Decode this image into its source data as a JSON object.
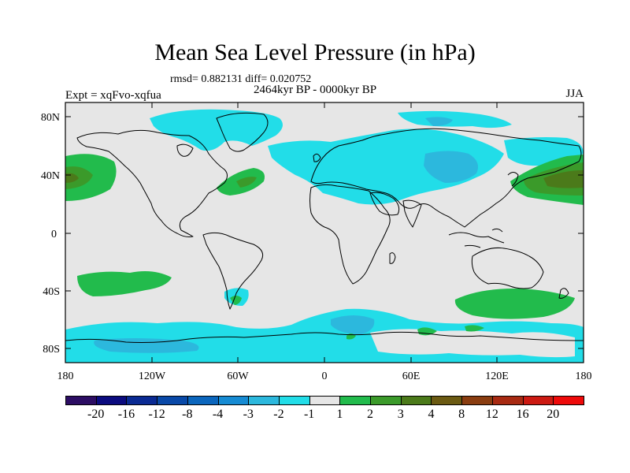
{
  "title": "Mean Sea Level Pressure (in hPa)",
  "stats": "rmsd= 0.882131 diff= 0.020752",
  "period": "2464kyr BP - 0000kyr BP",
  "experiment": "Expt = xqFvo-xqfua",
  "season": "JJA",
  "lat_ticks": [
    "80N",
    "40N",
    "0",
    "40S",
    "80S"
  ],
  "lon_ticks": [
    "180",
    "120W",
    "60W",
    "0",
    "60E",
    "120E",
    "180"
  ],
  "legend": {
    "labels": [
      "-20",
      "-16",
      "-12",
      "-8",
      "-4",
      "-3",
      "-2",
      "-1",
      "1",
      "2",
      "3",
      "4",
      "8",
      "12",
      "16",
      "20"
    ],
    "colors": [
      "#2c0d63",
      "#0b0b7f",
      "#0a2a93",
      "#0949a8",
      "#0b66bd",
      "#168bd3",
      "#2cb8dd",
      "#22dde8",
      "#e6e6e6",
      "#22bb4c",
      "#3b9a2a",
      "#4b7a1a",
      "#6b5a12",
      "#8a3d10",
      "#a82a12",
      "#cc1a12",
      "#ee0a0a"
    ]
  },
  "colors": {
    "neutral": "#e6e6e6",
    "light_blue": "#22dde8",
    "mid_blue": "#2cb8dd",
    "dark_blue": "#168bd3",
    "green": "#22bb4c",
    "dark_green": "#3b9a2a",
    "olive": "#4b7a1a"
  }
}
